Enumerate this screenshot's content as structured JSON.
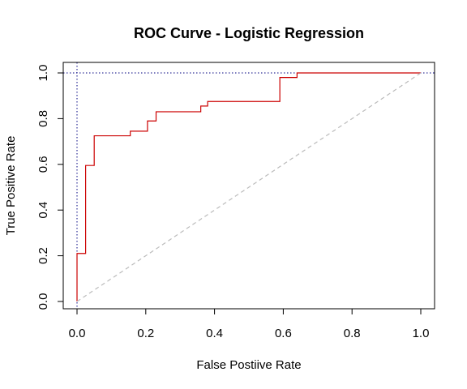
{
  "chart_data": {
    "type": "line",
    "title": "ROC Curve - Logistic Regression",
    "xlabel": "False Postiive Rate",
    "ylabel": "True Positive Rate",
    "xlim": [
      0,
      1
    ],
    "ylim": [
      0,
      1
    ],
    "xticks": [
      "0.0",
      "0.2",
      "0.4",
      "0.6",
      "0.8",
      "1.0"
    ],
    "yticks": [
      "0.0",
      "0.2",
      "0.4",
      "0.6",
      "0.8",
      "1.0"
    ],
    "grid": false,
    "legend": "none",
    "series": [
      {
        "style": "step",
        "color": "#cc0000",
        "x": [
          0.0,
          0.0,
          0.025,
          0.025,
          0.05,
          0.05,
          0.155,
          0.155,
          0.205,
          0.205,
          0.23,
          0.23,
          0.36,
          0.36,
          0.38,
          0.38,
          0.59,
          0.59,
          0.64,
          0.64,
          1.0
        ],
        "y": [
          0.0,
          0.21,
          0.21,
          0.595,
          0.595,
          0.725,
          0.725,
          0.745,
          0.745,
          0.79,
          0.79,
          0.83,
          0.83,
          0.855,
          0.855,
          0.875,
          0.875,
          0.98,
          0.98,
          1.0,
          1.0
        ]
      },
      {
        "style": "dashed",
        "color": "#bbbbbb",
        "x": [
          0,
          1
        ],
        "y": [
          0,
          1
        ]
      }
    ],
    "reference_lines": [
      {
        "orientation": "vertical",
        "value": 0.0,
        "style": "dotted",
        "color": "#000080"
      },
      {
        "orientation": "horizontal",
        "value": 1.0,
        "style": "dotted",
        "color": "#000080"
      }
    ]
  }
}
